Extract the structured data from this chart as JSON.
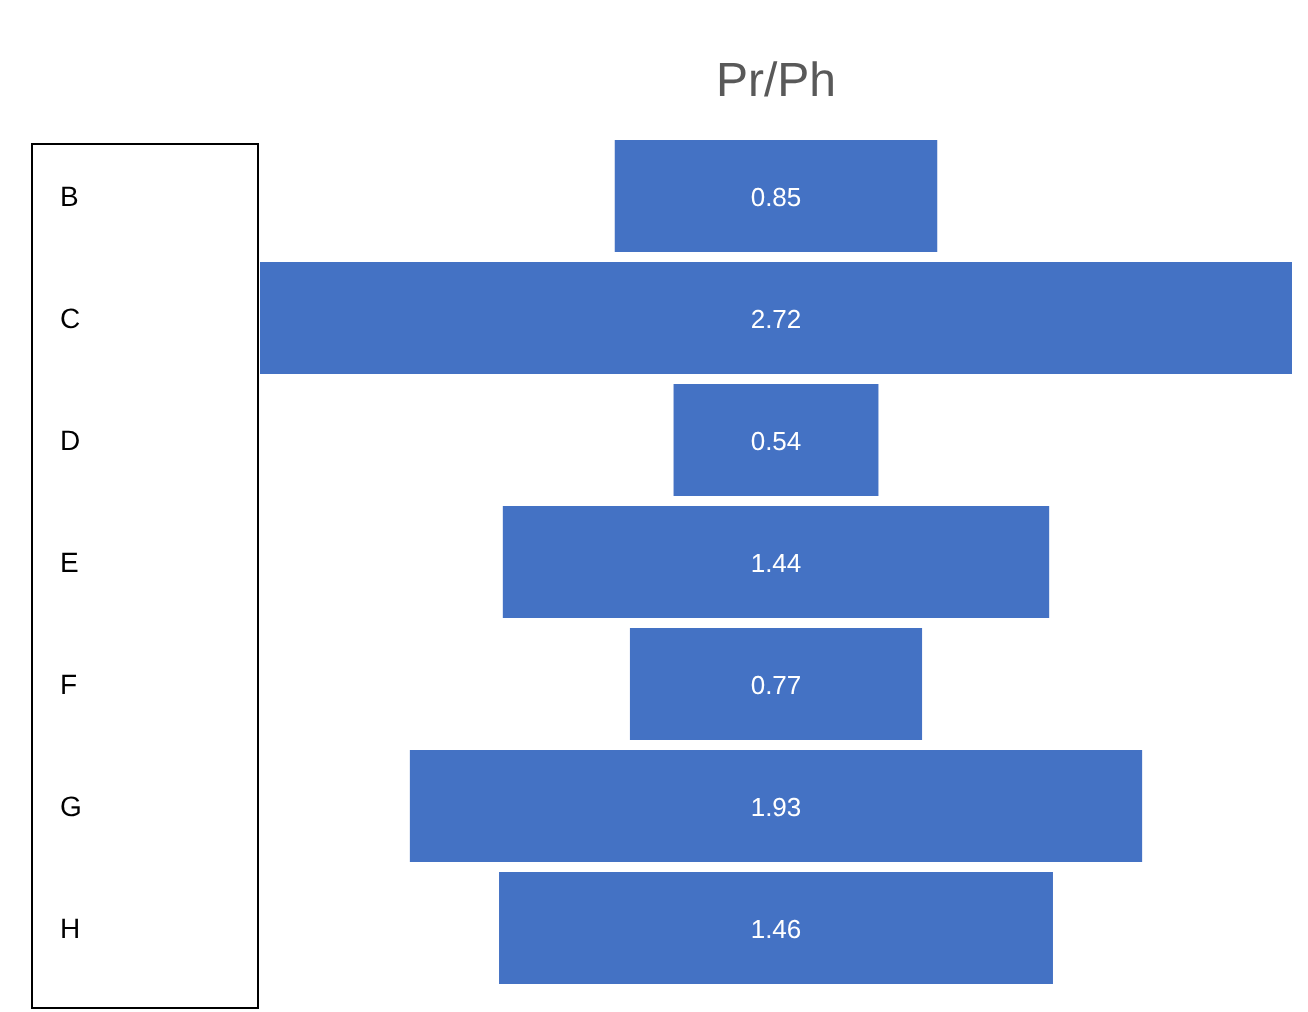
{
  "chart_data": {
    "type": "other",
    "title": "Pr/Ph",
    "categories": [
      "B",
      "C",
      "D",
      "E",
      "F",
      "G",
      "H"
    ],
    "values": [
      0.85,
      2.72,
      0.54,
      1.44,
      0.77,
      1.93,
      1.46
    ],
    "color": "#4472c4",
    "data_labels": true
  }
}
